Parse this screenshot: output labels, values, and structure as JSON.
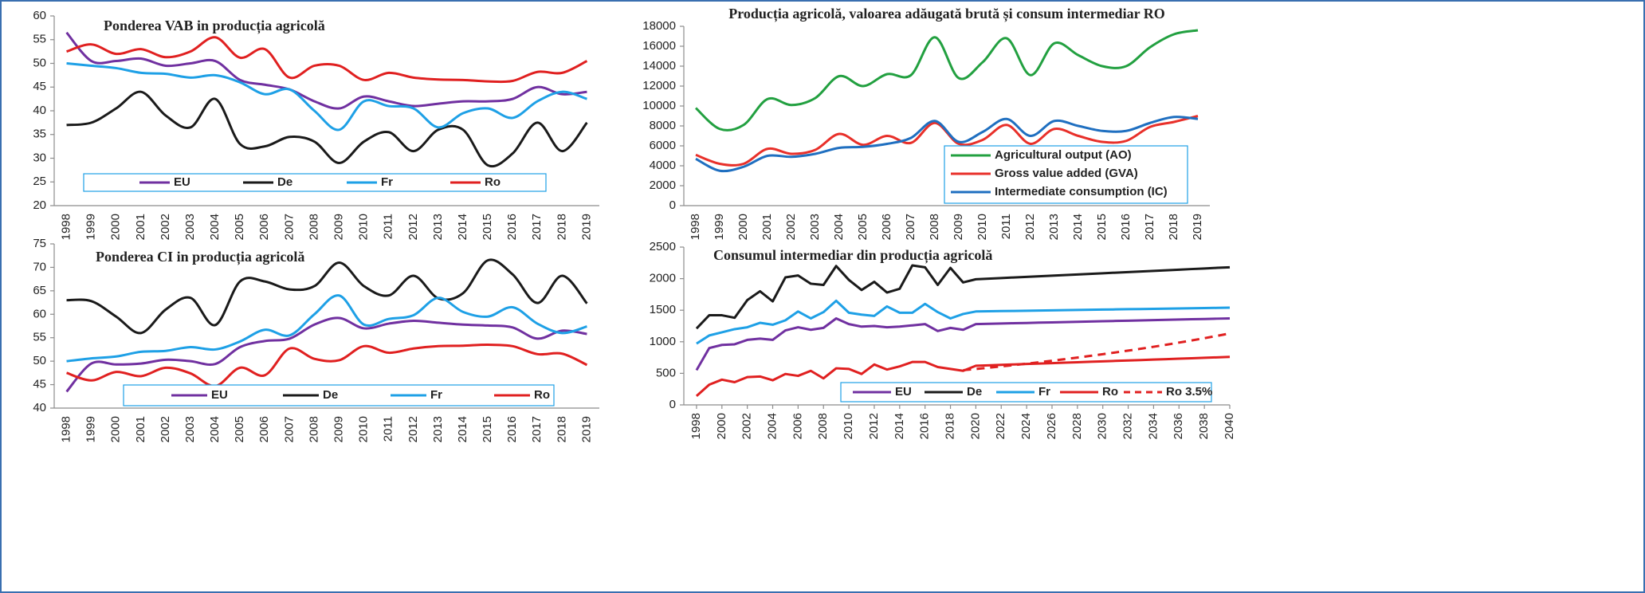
{
  "chart_data": [
    {
      "type": "line",
      "title": "Ponderea  VAB in producția agricolă",
      "smooth": true,
      "categories": [
        "1998",
        "1999",
        "2000",
        "2001",
        "2002",
        "2003",
        "2004",
        "2005",
        "2006",
        "2007",
        "2008",
        "2009",
        "2010",
        "2011",
        "2012",
        "2013",
        "2014",
        "2015",
        "2016",
        "2017",
        "2018",
        "2019"
      ],
      "ylim": [
        20,
        60
      ],
      "yticks": [
        20,
        25,
        30,
        35,
        40,
        45,
        50,
        55,
        60
      ],
      "series": [
        {
          "name": "EU",
          "color": "#7030a0",
          "values": [
            56.5,
            50.5,
            50.5,
            51,
            49.5,
            50,
            50.5,
            46.5,
            45.5,
            44.5,
            42,
            40.5,
            43,
            42,
            41,
            41.5,
            42,
            42,
            42.5,
            45,
            43.5,
            44
          ]
        },
        {
          "name": "De",
          "color": "#1a1a1a",
          "values": [
            37,
            37.5,
            40.5,
            44,
            39,
            36.5,
            42.5,
            33,
            32.5,
            34.5,
            33.5,
            29,
            33.5,
            35.5,
            31.5,
            36,
            36,
            28.5,
            31,
            37.5,
            31.5,
            37.5
          ]
        },
        {
          "name": "Fr",
          "color": "#1ea0e6",
          "values": [
            50,
            49.5,
            49,
            48,
            47.8,
            47,
            47.5,
            46,
            43.5,
            44.5,
            40,
            36,
            42,
            41,
            40.5,
            36.5,
            39.5,
            40.5,
            38.5,
            42,
            44,
            42.5
          ]
        },
        {
          "name": "Ro",
          "color": "#e02020",
          "values": [
            52.5,
            54,
            52,
            53,
            51.3,
            52.5,
            55.5,
            51.2,
            53,
            47,
            49.5,
            49.5,
            46.5,
            48,
            47,
            46.6,
            46.5,
            46.2,
            46.3,
            48.2,
            48,
            50.5
          ]
        }
      ]
    },
    {
      "type": "line",
      "title": "Ponderea CI in producția agricolă",
      "smooth": true,
      "categories": [
        "1998",
        "1999",
        "2000",
        "2001",
        "2002",
        "2003",
        "2004",
        "2005",
        "2006",
        "2007",
        "2008",
        "2009",
        "2010",
        "2011",
        "2012",
        "2013",
        "2014",
        "2015",
        "2016",
        "2017",
        "2018",
        "2019"
      ],
      "ylim": [
        40,
        75
      ],
      "yticks": [
        40,
        45,
        50,
        55,
        60,
        65,
        70,
        75
      ],
      "series": [
        {
          "name": "EU",
          "color": "#7030a0",
          "values": [
            43.5,
            49.5,
            49.3,
            49.5,
            50.3,
            50,
            49.4,
            53,
            54.3,
            54.8,
            57.8,
            59.2,
            57,
            58,
            58.6,
            58.2,
            57.8,
            57.6,
            57.2,
            54.8,
            56.5,
            55.8
          ]
        },
        {
          "name": "De",
          "color": "#1a1a1a",
          "values": [
            63,
            62.8,
            59.5,
            56,
            61,
            63.5,
            57.7,
            67,
            67,
            65.3,
            66,
            71,
            66,
            64,
            68.2,
            63.4,
            64.5,
            71.5,
            68.5,
            62.4,
            68.2,
            62.3
          ]
        },
        {
          "name": "Fr",
          "color": "#1ea0e6",
          "values": [
            50,
            50.6,
            51,
            52,
            52.2,
            53,
            52.5,
            54.2,
            56.7,
            55.5,
            60,
            64,
            57.8,
            59,
            59.8,
            63.5,
            60.5,
            59.5,
            61.5,
            58,
            56,
            57.4
          ]
        },
        {
          "name": "Ro",
          "color": "#e02020",
          "values": [
            47.5,
            45.9,
            47.7,
            46.8,
            48.6,
            47.4,
            44.7,
            48.6,
            47,
            52.7,
            50.5,
            50.2,
            53.2,
            51.8,
            52.7,
            53.2,
            53.3,
            53.5,
            53.2,
            51.5,
            51.6,
            49.2
          ]
        }
      ]
    },
    {
      "type": "line",
      "title": "Producția agricolă, valoarea adăugată brută și consum intermediar RO",
      "smooth": true,
      "categories": [
        "1998",
        "1999",
        "2000",
        "2001",
        "2002",
        "2003",
        "2004",
        "2005",
        "2006",
        "2007",
        "2008",
        "2009",
        "2010",
        "2011",
        "2012",
        "2013",
        "2014",
        "2015",
        "2016",
        "2017",
        "2018",
        "2019"
      ],
      "ylim": [
        0,
        18000
      ],
      "yticks": [
        0,
        2000,
        4000,
        6000,
        8000,
        10000,
        12000,
        14000,
        16000,
        18000
      ],
      "series": [
        {
          "name": "Agricultural output (AO)",
          "color": "#22a040",
          "values": [
            9800,
            7700,
            8100,
            10700,
            10100,
            10800,
            13000,
            12000,
            13200,
            13100,
            16900,
            12800,
            14400,
            16800,
            13100,
            16300,
            15100,
            14000,
            14000,
            15900,
            17200,
            17600
          ]
        },
        {
          "name": "Gross value added (GVA)",
          "color": "#e8302a",
          "values": [
            5100,
            4200,
            4200,
            5700,
            5200,
            5600,
            7200,
            6100,
            7000,
            6300,
            8300,
            6200,
            6600,
            8100,
            6200,
            7700,
            7000,
            6400,
            6500,
            7900,
            8400,
            9000
          ]
        },
        {
          "name": "Intermediate consumption (IC)",
          "color": "#1f6fc0",
          "values": [
            4700,
            3500,
            3900,
            5000,
            4900,
            5200,
            5800,
            5900,
            6200,
            6800,
            8500,
            6400,
            7400,
            8700,
            7000,
            8500,
            8000,
            7500,
            7500,
            8300,
            8900,
            8700
          ]
        }
      ]
    },
    {
      "type": "line",
      "title": "Consumul intermediar din producția agricolă",
      "smooth": false,
      "x": [
        1998,
        1999,
        2000,
        2001,
        2002,
        2003,
        2004,
        2005,
        2006,
        2007,
        2008,
        2009,
        2010,
        2011,
        2012,
        2013,
        2014,
        2015,
        2016,
        2017,
        2018,
        2019,
        2020,
        2021,
        2022,
        2023,
        2024,
        2025,
        2026,
        2027,
        2028,
        2029,
        2030,
        2031,
        2032,
        2033,
        2034,
        2035,
        2036,
        2037,
        2038,
        2039,
        2040
      ],
      "xlim": [
        1997,
        2040
      ],
      "xticks": [
        1998,
        2000,
        2002,
        2004,
        2006,
        2008,
        2010,
        2012,
        2014,
        2016,
        2018,
        2020,
        2022,
        2024,
        2026,
        2028,
        2030,
        2032,
        2034,
        2036,
        2038,
        2040
      ],
      "ylim": [
        0,
        2500
      ],
      "yticks": [
        0,
        500,
        1000,
        1500,
        2000,
        2500
      ],
      "series": [
        {
          "name": "EU",
          "color": "#7030a0",
          "values": [
            550,
            900,
            950,
            960,
            1030,
            1050,
            1030,
            1180,
            1230,
            1190,
            1220,
            1370,
            1280,
            1240,
            1250,
            1230,
            1240,
            1260,
            1280,
            1170,
            1220,
            1190,
            1280,
            1285,
            1289,
            1294,
            1298,
            1303,
            1307,
            1312,
            1316,
            1321,
            1325,
            1330,
            1334,
            1339,
            1343,
            1348,
            1352,
            1357,
            1361,
            1366,
            1370
          ]
        },
        {
          "name": "De",
          "color": "#1a1a1a",
          "values": [
            1210,
            1420,
            1420,
            1380,
            1660,
            1800,
            1640,
            2020,
            2050,
            1920,
            1900,
            2200,
            1980,
            1820,
            1950,
            1780,
            1840,
            2210,
            2180,
            1900,
            2170,
            1940,
            1990,
            2000,
            2009,
            2019,
            2028,
            2038,
            2047,
            2057,
            2066,
            2076,
            2085,
            2095,
            2104,
            2114,
            2123,
            2133,
            2142,
            2152,
            2161,
            2171,
            2180
          ]
        },
        {
          "name": "Fr",
          "color": "#1ea0e6",
          "values": [
            970,
            1100,
            1150,
            1200,
            1230,
            1300,
            1270,
            1340,
            1480,
            1370,
            1470,
            1650,
            1460,
            1430,
            1410,
            1560,
            1460,
            1460,
            1600,
            1470,
            1370,
            1440,
            1480,
            1483,
            1486,
            1489,
            1492,
            1495,
            1498,
            1501,
            1504,
            1507,
            1510,
            1513,
            1516,
            1519,
            1522,
            1525,
            1528,
            1531,
            1534,
            1537,
            1540
          ]
        },
        {
          "name": "Ro",
          "color": "#e02020",
          "values": [
            140,
            320,
            400,
            360,
            440,
            450,
            390,
            490,
            460,
            540,
            420,
            580,
            570,
            490,
            640,
            560,
            610,
            680,
            680,
            600,
            570,
            540,
            620,
            627,
            634,
            641,
            648,
            655,
            662,
            669,
            676,
            683,
            690,
            697,
            704,
            711,
            718,
            725,
            732,
            739,
            746,
            753,
            760
          ]
        },
        {
          "name": "Ro 3.5%",
          "color": "#e02020",
          "dashed": true,
          "values": [
            null,
            null,
            null,
            null,
            null,
            null,
            null,
            null,
            null,
            null,
            null,
            null,
            null,
            null,
            null,
            null,
            null,
            null,
            null,
            null,
            null,
            550,
            569,
            589,
            610,
            631,
            653,
            676,
            700,
            724,
            750,
            776,
            803,
            831,
            860,
            890,
            921,
            953,
            987,
            1021,
            1057,
            1094,
            1132
          ]
        }
      ]
    }
  ]
}
